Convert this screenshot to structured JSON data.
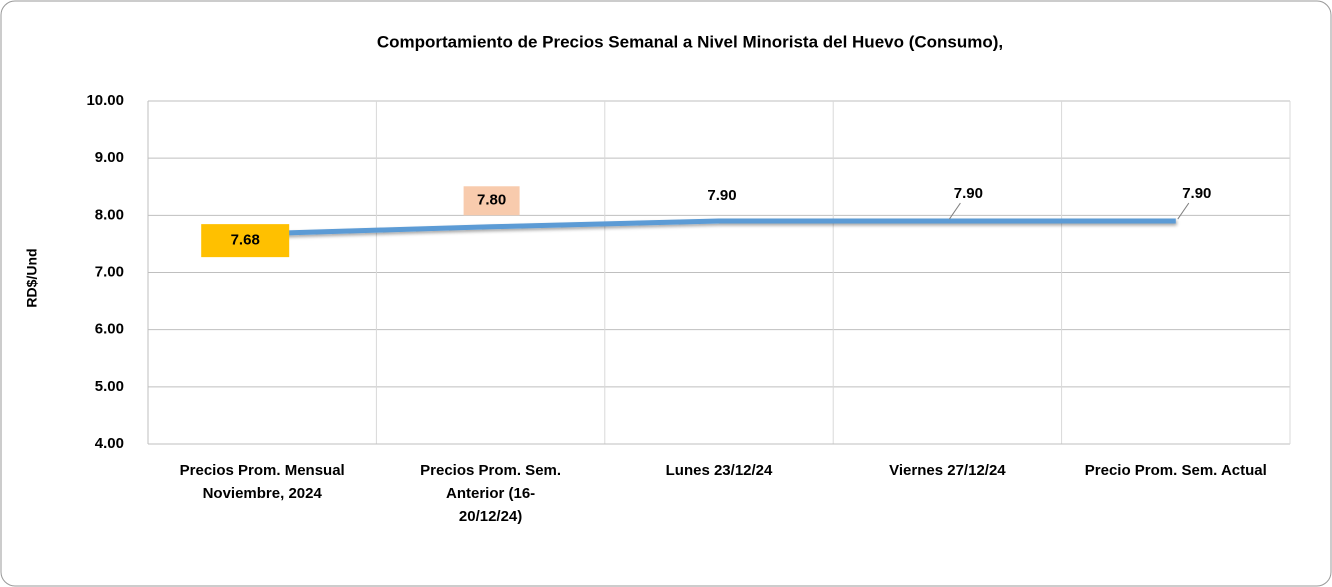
{
  "chart_data": {
    "type": "line",
    "title": "Comportamiento de Precios Semanal a Nivel Minorista del Huevo  (Consumo),",
    "y_label": "RD$/Und",
    "categories": [
      [
        "Precios Prom. Mensual",
        "Noviembre, 2024"
      ],
      [
        "Precios Prom. Sem.",
        "Anterior (16-",
        "20/12/24)"
      ],
      [
        "Lunes 23/12/24"
      ],
      [
        "Viernes 27/12/24"
      ],
      [
        "Precio Prom. Sem. Actual"
      ]
    ],
    "series": [
      {
        "color": "#5b9bd5",
        "values": [
          7.68,
          7.8,
          7.9,
          7.9,
          7.9
        ],
        "value_labels": [
          "7.68",
          "7.80",
          "7.90",
          "7.90",
          "7.90"
        ],
        "value_label_colors": [
          "#ffc000",
          "#f8cbad",
          null,
          null,
          null
        ]
      }
    ],
    "ylim": [
      4,
      10
    ],
    "yticks": [
      {
        "value": 4,
        "label": "4.00"
      },
      {
        "value": 5,
        "label": "5.00"
      },
      {
        "value": 6,
        "label": "6.00"
      },
      {
        "value": 7,
        "label": "7.00"
      },
      {
        "value": 8,
        "label": "8.00"
      },
      {
        "value": 9,
        "label": "9.00"
      },
      {
        "value": 10,
        "label": "10.00"
      }
    ],
    "grid": true
  }
}
